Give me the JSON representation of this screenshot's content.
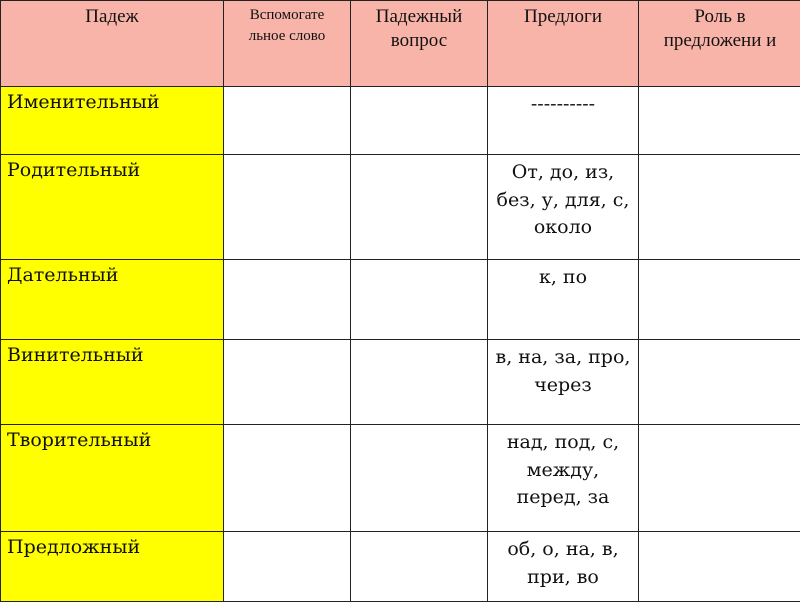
{
  "table": {
    "headers": [
      "Падеж",
      "Вспомогательное слово",
      "Падежный вопрос",
      "Предлоги",
      "Роль в предложении"
    ],
    "header_display": [
      "Падеж",
      "Вспомогате льное слово",
      "Падежный вопрос",
      "Предлоги",
      "Роль в предложени и"
    ],
    "rows": [
      {
        "case": "Именительный",
        "aux_word": "",
        "question": "",
        "prepositions": "----------",
        "role": ""
      },
      {
        "case": "Родительный",
        "aux_word": "",
        "question": "",
        "prepositions": "От, до, из, без, у, для, с, около",
        "role": ""
      },
      {
        "case": "Дательный",
        "aux_word": "",
        "question": "",
        "prepositions": "к, по",
        "role": ""
      },
      {
        "case": "Винительный",
        "aux_word": "",
        "question": "",
        "prepositions": "в, на, за, про, через",
        "role": ""
      },
      {
        "case": "Творительный",
        "aux_word": "",
        "question": "",
        "prepositions": "над, под, с, между, перед, за",
        "role": ""
      },
      {
        "case": "Предложный",
        "aux_word": "",
        "question": "",
        "prepositions": "об, о, на, в, при, во",
        "role": ""
      }
    ]
  },
  "colors": {
    "header_bg": "#f8b4a8",
    "case_bg": "#ffff00"
  }
}
